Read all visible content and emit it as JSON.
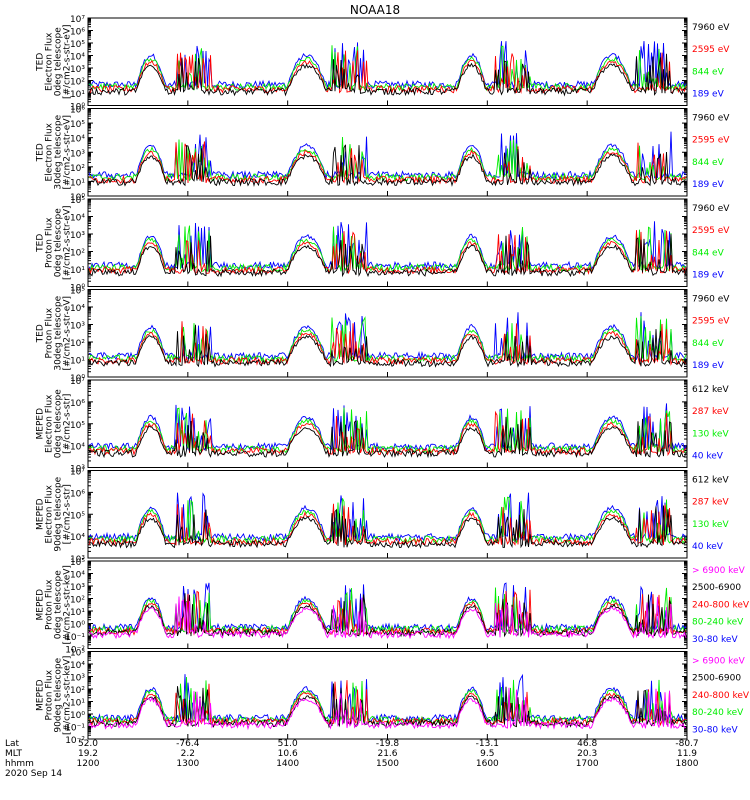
{
  "title": "NOAA18",
  "colors": {
    "black": "#000000",
    "red": "#ff0000",
    "green": "#00ee00",
    "blue": "#0000ff",
    "magenta": "#ff00ff"
  },
  "chart_data": {
    "type": "line",
    "title": "NOAA18",
    "x_labels": {
      "lat": [
        "52.0",
        "-76.4",
        "51.0",
        "-19.8",
        "-13.1",
        "46.8",
        "-80.7"
      ],
      "mlt": [
        "19.2",
        "2.2",
        "10.6",
        "21.6",
        "9.5",
        "20.3",
        "11.9"
      ],
      "hhmm": [
        "1200",
        "1300",
        "1400",
        "1500",
        "1600",
        "1700",
        "1800"
      ]
    },
    "x_row_labels": [
      "Lat",
      "MLT",
      "hhmm"
    ],
    "date": "2020 Sep 14",
    "panels": [
      {
        "ylabel": [
          "TED",
          "Electron Flux",
          "0deg telescope",
          "[#/cm2-s-str-eV]"
        ],
        "yexp_min": 0,
        "yexp_max": 7,
        "yticks": [
          "10⁰",
          "10¹",
          "10²",
          "10³",
          "10⁴",
          "10⁵",
          "10⁶",
          "10⁷"
        ],
        "series": [
          {
            "name": "7960 eV",
            "color": "#000000"
          },
          {
            "name": "2595 eV",
            "color": "#ff0000"
          },
          {
            "name": "844 eV",
            "color": "#00ee00"
          },
          {
            "name": "189 eV",
            "color": "#0000ff"
          }
        ]
      },
      {
        "ylabel": [
          "TED",
          "Electron Flux",
          "30deg telescope",
          "[#/cm2-s-str-eV]"
        ],
        "yexp_min": 0,
        "yexp_max": 6,
        "yticks": [
          "10⁰",
          "10¹",
          "10²",
          "10³",
          "10⁴",
          "10⁵",
          "10⁶"
        ],
        "series": [
          {
            "name": "7960 eV",
            "color": "#000000"
          },
          {
            "name": "2595 eV",
            "color": "#ff0000"
          },
          {
            "name": "844 eV",
            "color": "#00ee00"
          },
          {
            "name": "189 eV",
            "color": "#0000ff"
          }
        ]
      },
      {
        "ylabel": [
          "TED",
          "Proton Flux",
          "0deg telescope",
          "[#/cm2-s-str-eV]"
        ],
        "yexp_min": 0,
        "yexp_max": 5,
        "yticks": [
          "10⁰",
          "10¹",
          "10²",
          "10³",
          "10⁴",
          "10⁵"
        ],
        "series": [
          {
            "name": "7960 eV",
            "color": "#000000"
          },
          {
            "name": "2595 eV",
            "color": "#ff0000"
          },
          {
            "name": "844 eV",
            "color": "#00ee00"
          },
          {
            "name": "189 eV",
            "color": "#0000ff"
          }
        ]
      },
      {
        "ylabel": [
          "TED",
          "Proton Flux",
          "30deg telescope",
          "[#/cm2-s-str-eV]"
        ],
        "yexp_min": 0,
        "yexp_max": 5,
        "yticks": [
          "10⁰",
          "10¹",
          "10²",
          "10³",
          "10⁴",
          "10⁵"
        ],
        "series": [
          {
            "name": "7960 eV",
            "color": "#000000"
          },
          {
            "name": "2595 eV",
            "color": "#ff0000"
          },
          {
            "name": "844 eV",
            "color": "#00ee00"
          },
          {
            "name": "189 eV",
            "color": "#0000ff"
          }
        ]
      },
      {
        "ylabel": [
          "MEPED",
          "Electron Flux",
          "0deg telescope",
          "[#/cm2-s-str]"
        ],
        "yexp_min": 3,
        "yexp_max": 7,
        "yticks": [
          "10³",
          "10⁴",
          "10⁵",
          "10⁶",
          "10⁷"
        ],
        "series": [
          {
            "name": "612 keV",
            "color": "#000000"
          },
          {
            "name": "287 keV",
            "color": "#ff0000"
          },
          {
            "name": "130 keV",
            "color": "#00ee00"
          },
          {
            "name": "40 keV",
            "color": "#0000ff"
          }
        ]
      },
      {
        "ylabel": [
          "MEPED",
          "Electron Flux",
          "90deg telescope",
          "[#/cm2-s-str]"
        ],
        "yexp_min": 3,
        "yexp_max": 7,
        "yticks": [
          "10³",
          "10⁴",
          "10⁵",
          "10⁶",
          "10⁷"
        ],
        "series": [
          {
            "name": "612 keV",
            "color": "#000000"
          },
          {
            "name": "287 keV",
            "color": "#ff0000"
          },
          {
            "name": "130 keV",
            "color": "#00ee00"
          },
          {
            "name": "40 keV",
            "color": "#0000ff"
          }
        ]
      },
      {
        "ylabel": [
          "MEPED",
          "Proton Flux",
          "0deg telescope",
          "[#/cm2-s-str-keV]"
        ],
        "yexp_min": -2,
        "yexp_max": 5,
        "yticks": [
          "10⁻²",
          "10⁻¹",
          "10⁰",
          "10¹",
          "10²",
          "10³",
          "10⁴",
          "10⁵"
        ],
        "series": [
          {
            "name": "> 6900 keV",
            "color": "#ff00ff"
          },
          {
            "name": "2500-6900",
            "color": "#000000"
          },
          {
            "name": "240-800 keV",
            "color": "#ff0000"
          },
          {
            "name": "80-240 keV",
            "color": "#00ee00"
          },
          {
            "name": "30-80 keV",
            "color": "#0000ff"
          }
        ]
      },
      {
        "ylabel": [
          "MEPED",
          "Proton Flux",
          "90deg telescope",
          "[#/cm2-s-str-keV]"
        ],
        "yexp_min": -2,
        "yexp_max": 5,
        "yticks": [
          "10⁻²",
          "10⁻¹",
          "10⁰",
          "10¹",
          "10²",
          "10³",
          "10⁴",
          "10⁵"
        ],
        "series": [
          {
            "name": "> 6900 keV",
            "color": "#ff00ff"
          },
          {
            "name": "2500-6900",
            "color": "#000000"
          },
          {
            "name": "240-800 keV",
            "color": "#ff0000"
          },
          {
            "name": "80-240 keV",
            "color": "#00ee00"
          },
          {
            "name": "30-80 keV",
            "color": "#0000ff"
          }
        ]
      }
    ]
  }
}
